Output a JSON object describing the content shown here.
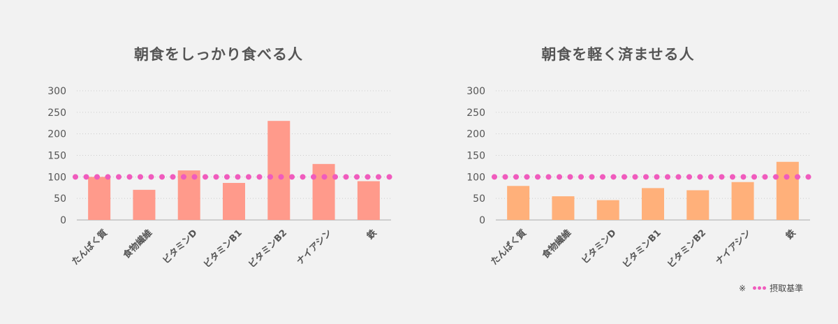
{
  "legend": {
    "note_mark": "※",
    "label": "摂取基準",
    "color": "#f05bbd"
  },
  "colors": {
    "left_bar": "#ff9a8b",
    "right_bar": "#ffb07a",
    "axis": "#aaaaaa",
    "grid": "#cccccc",
    "text": "#555555",
    "reference": "#f05bbd"
  },
  "chart_data": [
    {
      "type": "bar",
      "title": "朝食をしっかり食べる人",
      "categories": [
        "たんぱく質",
        "食物繊維",
        "ビタミンD",
        "ビタミンB1",
        "ビタミンB2",
        "ナイアシン",
        "鉄"
      ],
      "values": [
        100,
        70,
        115,
        86,
        230,
        130,
        90
      ],
      "reference_line": 100,
      "ylim": [
        0,
        300
      ],
      "yticks": [
        "0",
        "50",
        "100",
        "150",
        "200",
        "250",
        "300"
      ],
      "grid": true,
      "xlabel": "",
      "ylabel": ""
    },
    {
      "type": "bar",
      "title": "朝食を軽く済ませる人",
      "categories": [
        "たんぱく質",
        "食物繊維",
        "ビタミンD",
        "ビタミンB1",
        "ビタミンB2",
        "ナイアシン",
        "鉄"
      ],
      "values": [
        79,
        55,
        46,
        74,
        69,
        88,
        135
      ],
      "reference_line": 100,
      "ylim": [
        0,
        300
      ],
      "yticks": [
        "0",
        "50",
        "100",
        "150",
        "200",
        "250",
        "300"
      ],
      "grid": true,
      "xlabel": "",
      "ylabel": ""
    }
  ]
}
